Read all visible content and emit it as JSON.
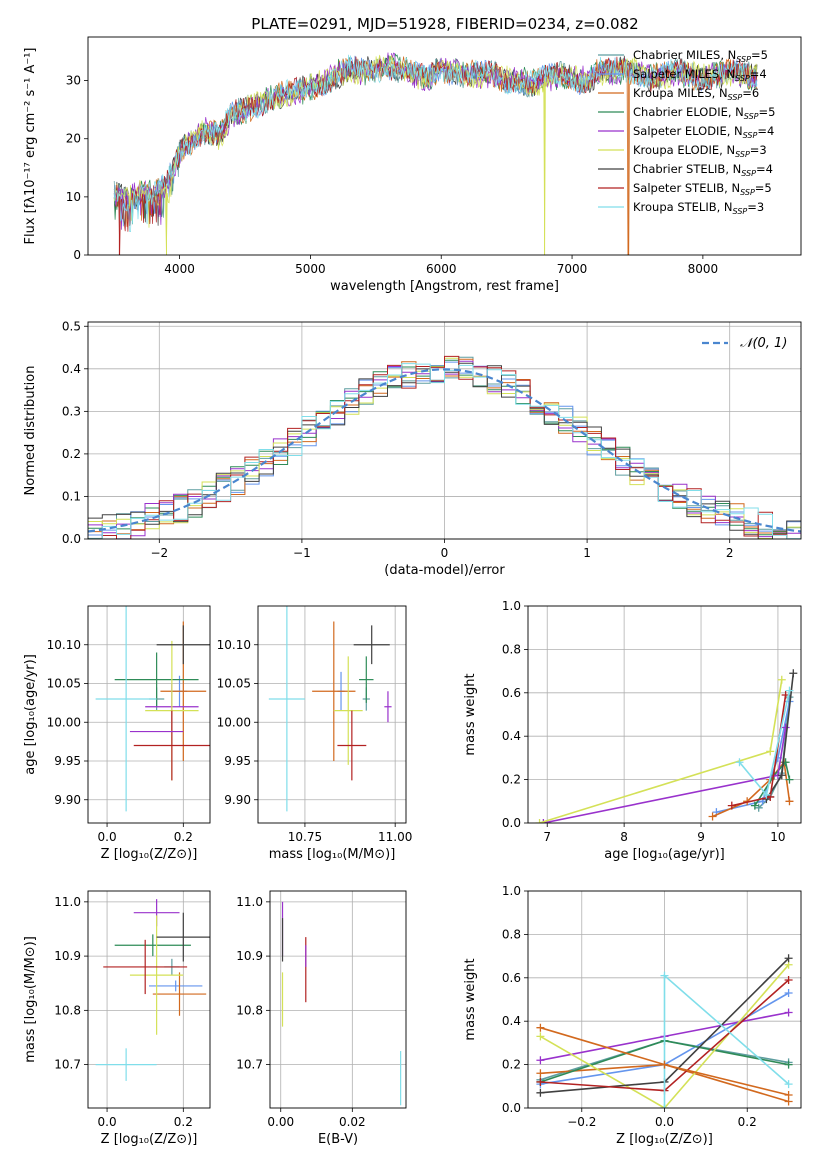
{
  "figure_title": "PLATE=0291, MJD=51928, FIBERID=0234, z=0.082",
  "models": [
    {
      "name": "Chabrier MILES, N",
      "sub": "SSP",
      "tail": "=5",
      "color": "#5f9ea0"
    },
    {
      "name": "Salpeter MILES, N",
      "sub": "SSP",
      "tail": "=4",
      "color": "#6495ed"
    },
    {
      "name": "Kroupa MILES, N",
      "sub": "SSP",
      "tail": "=6",
      "color": "#d2691e"
    },
    {
      "name": "Chabrier ELODIE, N",
      "sub": "SSP",
      "tail": "=5",
      "color": "#2e8b57"
    },
    {
      "name": "Salpeter ELODIE, N",
      "sub": "SSP",
      "tail": "=4",
      "color": "#9932cc"
    },
    {
      "name": "Kroupa ELODIE, N",
      "sub": "SSP",
      "tail": "=3",
      "color": "#d4e157"
    },
    {
      "name": "Chabrier STELIB, N",
      "sub": "SSP",
      "tail": "=4",
      "color": "#404040"
    },
    {
      "name": "Salpeter STELIB, N",
      "sub": "SSP",
      "tail": "=5",
      "color": "#b22222"
    },
    {
      "name": "Kroupa STELIB, N",
      "sub": "SSP",
      "tail": "=3",
      "color": "#80deea"
    }
  ],
  "chart_data": [
    {
      "id": "spectrum",
      "type": "line",
      "xlabel": "wavelength [Angstrom, rest frame]",
      "ylabel": "Flux [fλ10⁻¹⁷ erg cm⁻² s⁻¹ A⁻¹]",
      "xlim": [
        3300,
        8750
      ],
      "ylim": [
        0,
        37.5
      ],
      "xticks": [
        4000,
        5000,
        6000,
        7000,
        8000
      ],
      "yticks": [
        0,
        10,
        20,
        30
      ],
      "continuum_x": [
        3500,
        3600,
        3700,
        3800,
        3900,
        4000,
        4100,
        4200,
        4300,
        4400,
        4500,
        4600,
        4700,
        4800,
        4900,
        5000,
        5100,
        5200,
        5300,
        5400,
        5500,
        5600,
        5700,
        5800,
        5900,
        6000,
        6100,
        6200,
        6300,
        6400,
        6500,
        6600,
        6700,
        6800,
        6900,
        7000,
        7100,
        7200,
        7300,
        7400,
        7500,
        7600,
        7700,
        7800,
        7900,
        8000,
        8100,
        8200,
        8300,
        8400
      ],
      "continuum_y": [
        10.5,
        9.5,
        11.0,
        10.5,
        12.0,
        17.5,
        20.0,
        21.5,
        20.5,
        24.0,
        25.0,
        26.0,
        27.0,
        27.5,
        28.0,
        29.0,
        29.5,
        31.0,
        32.0,
        31.5,
        32.0,
        32.5,
        32.0,
        31.0,
        30.5,
        32.0,
        31.5,
        31.0,
        31.0,
        31.0,
        30.0,
        30.0,
        29.5,
        30.5,
        31.0,
        30.5,
        30.0,
        31.5,
        31.5,
        32.0,
        31.5,
        30.5,
        31.0,
        31.5,
        31.0,
        30.5,
        31.0,
        31.5,
        31.0,
        30.5
      ],
      "drops": [
        {
          "model": 7,
          "x": 3540
        },
        {
          "model": 5,
          "x": 3900
        },
        {
          "model": 5,
          "x": 6790
        },
        {
          "model": 2,
          "x": 7430
        }
      ]
    },
    {
      "id": "residuals",
      "type": "histogram",
      "xlabel": "(data-model)/error",
      "ylabel": "Normed distribution",
      "xlim": [
        -2.5,
        2.5
      ],
      "ylim": [
        0,
        0.51
      ],
      "xticks": [
        -2,
        -1,
        0,
        1,
        2
      ],
      "yticks": [
        0,
        0.1,
        0.2,
        0.3,
        0.4,
        0.5
      ],
      "reference": "𝒩(0, 1)",
      "bin_width": 0.1
    },
    {
      "id": "age-vs-Z",
      "type": "errorbar",
      "xlabel": "Z [log₁₀(Z/Z⊙)]",
      "ylabel": "age  [log₁₀(age/yr)]",
      "xlim": [
        -0.05,
        0.27
      ],
      "ylim": [
        9.87,
        10.15
      ],
      "xticks": [
        0.0,
        0.2
      ],
      "yticks": [
        9.9,
        9.95,
        10.0,
        10.05,
        10.1
      ],
      "points": [
        {
          "model": 0,
          "x": 0.13,
          "y": 10.03,
          "xerr": 0.02,
          "yerr": 0.015
        },
        {
          "model": 1,
          "x": 0.19,
          "y": 10.04,
          "xerr": 0.02,
          "yerr": 0.02
        },
        {
          "model": 2,
          "x": 0.2,
          "y": 10.04,
          "xerr": 0.06,
          "yerr": 0.09
        },
        {
          "model": 3,
          "x": 0.13,
          "y": 10.055,
          "xerr": 0.11,
          "yerr": 0.035
        },
        {
          "model": 4,
          "x": 0.17,
          "y": 10.02,
          "xerr": 0.07,
          "yerr": 0.03
        },
        {
          "model": 5,
          "x": 0.17,
          "y": 10.015,
          "xerr": 0.07,
          "yerr": 0.09
        },
        {
          "model": 6,
          "x": 0.2,
          "y": 10.1,
          "xerr": 0.07,
          "yerr": 0.025
        },
        {
          "model": 7,
          "x": 0.17,
          "y": 9.97,
          "xerr": 0.1,
          "yerr": 0.045
        },
        {
          "model": 8,
          "x": 0.05,
          "y": 10.03,
          "xerr": 0.08,
          "yerr": 0.145
        },
        {
          "model": 4,
          "x": 0.13,
          "y": 9.988,
          "xerr": 0.07,
          "yerr": 0.0
        }
      ]
    },
    {
      "id": "age-vs-mass",
      "type": "errorbar",
      "xlabel": "mass [log₁₀(M/M⊙)]",
      "ylabel": "",
      "xlim": [
        10.62,
        11.03
      ],
      "ylim": [
        9.87,
        10.15
      ],
      "xticks": [
        10.75,
        11.0
      ],
      "yticks": [
        9.9,
        9.95,
        10.0,
        10.05,
        10.1
      ],
      "points": [
        {
          "model": 0,
          "x": 10.92,
          "y": 10.03,
          "xerr": 0.01,
          "yerr": 0.015
        },
        {
          "model": 1,
          "x": 10.85,
          "y": 10.04,
          "xerr": 0.01,
          "yerr": 0.025
        },
        {
          "model": 2,
          "x": 10.83,
          "y": 10.04,
          "xerr": 0.06,
          "yerr": 0.09
        },
        {
          "model": 3,
          "x": 10.92,
          "y": 10.055,
          "xerr": 0.02,
          "yerr": 0.03
        },
        {
          "model": 4,
          "x": 10.98,
          "y": 10.02,
          "xerr": 0.01,
          "yerr": 0.02
        },
        {
          "model": 5,
          "x": 10.87,
          "y": 10.015,
          "xerr": 0.04,
          "yerr": 0.07
        },
        {
          "model": 6,
          "x": 10.935,
          "y": 10.1,
          "xerr": 0.05,
          "yerr": 0.025
        },
        {
          "model": 7,
          "x": 10.88,
          "y": 9.97,
          "xerr": 0.04,
          "yerr": 0.045
        },
        {
          "model": 8,
          "x": 10.7,
          "y": 10.03,
          "xerr": 0.05,
          "yerr": 0.145
        }
      ]
    },
    {
      "id": "massweight-vs-age",
      "type": "line",
      "xlabel": "age  [log₁₀(age/yr)]",
      "ylabel": "mass weight",
      "xlim": [
        6.75,
        10.3
      ],
      "ylim": [
        0,
        1.0
      ],
      "xticks": [
        7,
        8,
        9,
        10
      ],
      "yticks": [
        0,
        0.2,
        0.4,
        0.6,
        0.8,
        1.0
      ],
      "series": [
        {
          "model": 0,
          "x": [
            9.75,
            9.9,
            10.05,
            10.15
          ],
          "y": [
            0.07,
            0.12,
            0.23,
            0.58
          ]
        },
        {
          "model": 1,
          "x": [
            9.2,
            9.8,
            10.0,
            10.15
          ],
          "y": [
            0.05,
            0.1,
            0.3,
            0.56
          ]
        },
        {
          "model": 2,
          "x": [
            9.15,
            9.6,
            9.9,
            10.08,
            10.15
          ],
          "y": [
            0.03,
            0.1,
            0.2,
            0.28,
            0.1
          ]
        },
        {
          "model": 3,
          "x": [
            9.7,
            9.95,
            10.1,
            10.15
          ],
          "y": [
            0.08,
            0.22,
            0.28,
            0.2
          ]
        },
        {
          "model": 4,
          "x": [
            6.95,
            10.0,
            10.1
          ],
          "y": [
            0.0,
            0.22,
            0.44
          ]
        },
        {
          "model": 5,
          "x": [
            6.9,
            9.9,
            10.05
          ],
          "y": [
            0.0,
            0.33,
            0.66
          ]
        },
        {
          "model": 6,
          "x": [
            9.85,
            10.05,
            10.2
          ],
          "y": [
            0.11,
            0.22,
            0.69
          ]
        },
        {
          "model": 7,
          "x": [
            9.4,
            9.9,
            10.1
          ],
          "y": [
            0.08,
            0.12,
            0.59
          ]
        },
        {
          "model": 8,
          "x": [
            9.5,
            9.85,
            10.15
          ],
          "y": [
            0.28,
            0.13,
            0.61
          ]
        }
      ]
    },
    {
      "id": "mass-vs-Z",
      "type": "errorbar",
      "xlabel": "Z [log₁₀(Z/Z⊙)]",
      "ylabel": "mass [log₁₀(M/M⊙)]",
      "xlim": [
        -0.05,
        0.27
      ],
      "ylim": [
        10.62,
        11.02
      ],
      "xticks": [
        0.0,
        0.2
      ],
      "yticks": [
        10.7,
        10.8,
        10.9,
        11.0
      ],
      "points": [
        {
          "model": 0,
          "x": 0.17,
          "y": 10.88,
          "xerr": 0.02,
          "yerr": 0.015
        },
        {
          "model": 1,
          "x": 0.18,
          "y": 10.845,
          "xerr": 0.07,
          "yerr": 0.01
        },
        {
          "model": 2,
          "x": 0.19,
          "y": 10.83,
          "xerr": 0.07,
          "yerr": 0.04
        },
        {
          "model": 3,
          "x": 0.12,
          "y": 10.92,
          "xerr": 0.1,
          "yerr": 0.02
        },
        {
          "model": 4,
          "x": 0.13,
          "y": 10.98,
          "xerr": 0.06,
          "yerr": 0.025
        },
        {
          "model": 5,
          "x": 0.13,
          "y": 10.865,
          "xerr": 0.07,
          "yerr": 0.11
        },
        {
          "model": 6,
          "x": 0.2,
          "y": 10.935,
          "xerr": 0.07,
          "yerr": 0.045
        },
        {
          "model": 7,
          "x": 0.1,
          "y": 10.88,
          "xerr": 0.11,
          "yerr": 0.05
        },
        {
          "model": 8,
          "x": 0.05,
          "y": 10.7,
          "xerr": 0.08,
          "yerr": 0.03
        }
      ]
    },
    {
      "id": "mass-vs-ebv",
      "type": "errorbar",
      "xlabel": "E(B-V)",
      "ylabel": "",
      "xlim": [
        -0.003,
        0.035
      ],
      "ylim": [
        10.62,
        11.02
      ],
      "xticks": [
        0.0,
        0.02
      ],
      "yticks": [
        10.7,
        10.8,
        10.9,
        11.0
      ],
      "points": [
        {
          "model": 4,
          "x": 0.0005,
          "y": 10.95,
          "xerr": 0.0,
          "yerr": 0.05
        },
        {
          "model": 6,
          "x": 0.0005,
          "y": 10.93,
          "xerr": 0.0,
          "yerr": 0.04
        },
        {
          "model": 5,
          "x": 0.0005,
          "y": 10.82,
          "xerr": 0.0,
          "yerr": 0.05
        },
        {
          "model": 7,
          "x": 0.007,
          "y": 10.875,
          "xerr": 0.0,
          "yerr": 0.06
        },
        {
          "model": 4,
          "x": 0.007,
          "y": 10.9,
          "xerr": 0.0,
          "yerr": 0.02
        },
        {
          "model": 8,
          "x": 0.0335,
          "y": 10.675,
          "xerr": 0.0,
          "yerr": 0.05
        }
      ]
    },
    {
      "id": "massweight-vs-Z",
      "type": "line",
      "xlabel": "Z [log₁₀(Z/Z⊙)]",
      "ylabel": "mass weight",
      "xlim": [
        -0.33,
        0.33
      ],
      "ylim": [
        0,
        1.0
      ],
      "xticks": [
        -0.2,
        0.0,
        0.2
      ],
      "yticks": [
        0,
        0.2,
        0.4,
        0.6,
        0.8,
        1.0
      ],
      "series": [
        {
          "model": 0,
          "x": [
            -0.3,
            0.0,
            0.3
          ],
          "y": [
            0.13,
            0.31,
            0.21
          ]
        },
        {
          "model": 1,
          "x": [
            -0.3,
            0.0,
            0.3
          ],
          "y": [
            0.11,
            0.2,
            0.53
          ]
        },
        {
          "model": 2,
          "x": [
            -0.3,
            0.0,
            0.3
          ],
          "y": [
            0.16,
            0.2,
            0.03
          ]
        },
        {
          "model": 3,
          "x": [
            -0.3,
            0.0,
            0.3
          ],
          "y": [
            0.12,
            0.31,
            0.2
          ]
        },
        {
          "model": 4,
          "x": [
            -0.3,
            0.0,
            0.3
          ],
          "y": [
            0.22,
            0.33,
            0.44
          ]
        },
        {
          "model": 5,
          "x": [
            -0.3,
            0.0,
            0.3
          ],
          "y": [
            0.33,
            0.0,
            0.66
          ]
        },
        {
          "model": 6,
          "x": [
            -0.3,
            0.0,
            0.3
          ],
          "y": [
            0.07,
            0.12,
            0.69
          ]
        },
        {
          "model": 7,
          "x": [
            -0.3,
            0.0,
            0.3
          ],
          "y": [
            0.12,
            0.08,
            0.59
          ]
        },
        {
          "model": 8,
          "x": [
            0.0,
            0.0,
            0.3
          ],
          "y": [
            0.0,
            0.61,
            0.11
          ]
        },
        {
          "model": 2,
          "x": [
            -0.3,
            0.0,
            0.3
          ],
          "y": [
            0.37,
            0.2,
            0.06
          ]
        }
      ]
    }
  ]
}
